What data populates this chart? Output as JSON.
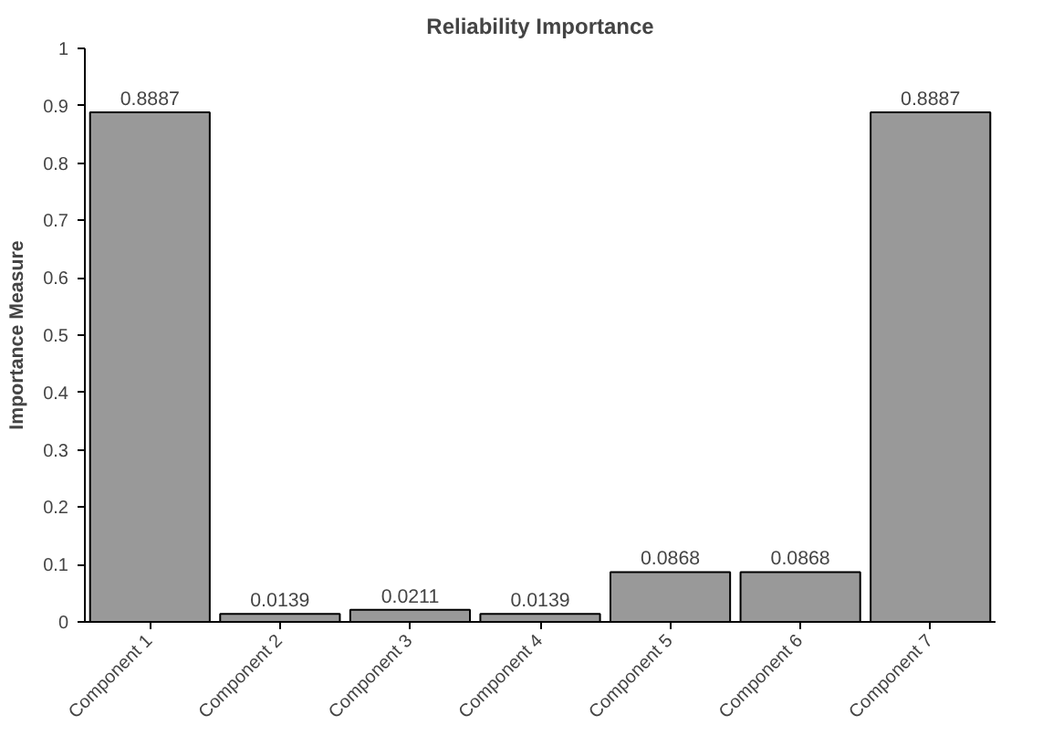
{
  "chart_data": {
    "type": "bar",
    "title": "Reliability Importance",
    "ylabel": "Importance Measure",
    "categories": [
      "Component 1",
      "Component 2",
      "Component 3",
      "Component 4",
      "Component 5",
      "Component 6",
      "Component 7"
    ],
    "values": [
      0.8887,
      0.0139,
      0.0211,
      0.0139,
      0.0868,
      0.0868,
      0.8887
    ],
    "color": "#999999",
    "ylim": [
      0,
      1
    ],
    "yticks": [
      0,
      0.1,
      0.2,
      0.3,
      0.4,
      0.5,
      0.6,
      0.7,
      0.8,
      0.9,
      1
    ],
    "data_labels": true,
    "grid": false
  }
}
